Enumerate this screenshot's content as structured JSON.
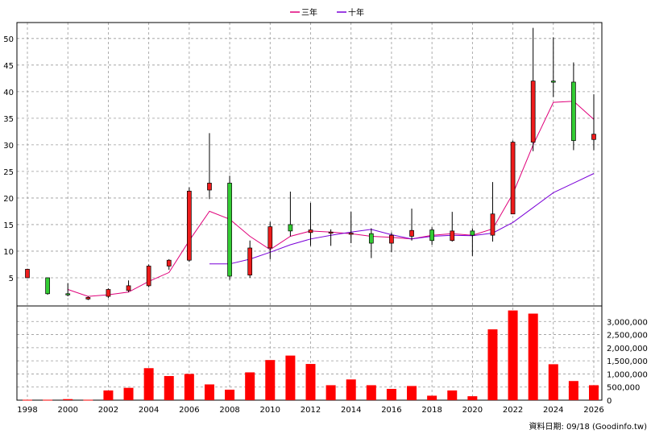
{
  "chart_data": {
    "type": "candlestick",
    "legend": [
      {
        "name": "三年",
        "color": "#e0007a"
      },
      {
        "name": "十年",
        "color": "#7a00d8"
      }
    ],
    "legend_position": "top-center",
    "grid": true,
    "x_tick_labels": [
      "1998",
      "2000",
      "2002",
      "2004",
      "2006",
      "2008",
      "2010",
      "2012",
      "2014",
      "2016",
      "2018",
      "2020",
      "2022",
      "2024",
      "2026"
    ],
    "price_axis": {
      "side": "left",
      "ylim": [
        0,
        53
      ],
      "ticks": [
        5,
        10,
        15,
        20,
        25,
        30,
        35,
        40,
        45,
        50
      ]
    },
    "volume_axis": {
      "side": "right",
      "ylim": [
        0,
        3500000
      ],
      "ticks": [
        0,
        500000,
        1000000,
        1500000,
        2000000,
        2500000,
        3000000
      ],
      "tick_labels": [
        "0",
        "500,000",
        "1,000,000",
        "1,500,000",
        "2,000,000",
        "2,500,000",
        "3,000,000"
      ]
    },
    "candles": [
      {
        "x": 1998,
        "open": 5.0,
        "close": 6.6,
        "high": 6.7,
        "low": 5.0
      },
      {
        "x": 1999,
        "open": 5.0,
        "close": 2.0,
        "high": 5.0,
        "low": 1.8
      },
      {
        "x": 2000,
        "open": 2.0,
        "close": 1.8,
        "high": 4.0,
        "low": 1.5
      },
      {
        "x": 2001,
        "open": 1.0,
        "close": 1.3,
        "high": 1.5,
        "low": 0.8
      },
      {
        "x": 2002,
        "open": 1.5,
        "close": 2.8,
        "high": 3.0,
        "low": 1.2
      },
      {
        "x": 2003,
        "open": 2.6,
        "close": 3.5,
        "high": 4.5,
        "low": 2.3
      },
      {
        "x": 2004,
        "open": 3.5,
        "close": 7.2,
        "high": 7.5,
        "low": 3.2
      },
      {
        "x": 2005,
        "open": 7.2,
        "close": 8.3,
        "high": 8.5,
        "low": 6.5
      },
      {
        "x": 2006,
        "open": 8.3,
        "close": 21.3,
        "high": 22.0,
        "low": 8.0
      },
      {
        "x": 2007,
        "open": 21.5,
        "close": 22.8,
        "high": 32.2,
        "low": 19.8
      },
      {
        "x": 2008,
        "open": 22.8,
        "close": 5.3,
        "high": 24.2,
        "low": 4.6
      },
      {
        "x": 2009,
        "open": 5.5,
        "close": 10.6,
        "high": 12.0,
        "low": 5.0
      },
      {
        "x": 2010,
        "open": 10.6,
        "close": 14.6,
        "high": 15.5,
        "low": 8.5
      },
      {
        "x": 2011,
        "open": 15.0,
        "close": 13.8,
        "high": 21.2,
        "low": 12.8
      },
      {
        "x": 2012,
        "open": 13.5,
        "close": 14.0,
        "high": 19.1,
        "low": 11.0
      },
      {
        "x": 2013,
        "open": 13.5,
        "close": 13.6,
        "high": 14.1,
        "low": 11.0
      },
      {
        "x": 2014,
        "open": 13.3,
        "close": 13.4,
        "high": 17.4,
        "low": 11.5
      },
      {
        "x": 2015,
        "open": 13.3,
        "close": 11.5,
        "high": 14.3,
        "low": 8.7
      },
      {
        "x": 2016,
        "open": 11.5,
        "close": 13.0,
        "high": 13.5,
        "low": 9.8
      },
      {
        "x": 2017,
        "open": 12.8,
        "close": 13.9,
        "high": 18.0,
        "low": 12.0
      },
      {
        "x": 2018,
        "open": 14.0,
        "close": 12.0,
        "high": 14.5,
        "low": 11.2
      },
      {
        "x": 2019,
        "open": 12.0,
        "close": 13.8,
        "high": 17.4,
        "low": 11.8
      },
      {
        "x": 2020,
        "open": 13.8,
        "close": 13.0,
        "high": 14.3,
        "low": 9.1
      },
      {
        "x": 2021,
        "open": 13.0,
        "close": 17.0,
        "high": 23.0,
        "low": 11.8
      },
      {
        "x": 2022,
        "open": 17.0,
        "close": 30.5,
        "high": 30.8,
        "low": 17.0
      },
      {
        "x": 2023,
        "open": 30.5,
        "close": 42.0,
        "high": 52.0,
        "low": 28.8
      },
      {
        "x": 2024,
        "open": 42.0,
        "close": 41.9,
        "high": 50.2,
        "low": 39.0
      },
      {
        "x": 2025,
        "open": 41.8,
        "close": 30.8,
        "high": 45.5,
        "low": 29.0
      },
      {
        "x": 2026,
        "open": 31.0,
        "close": 32.0,
        "high": 39.5,
        "low": 29.0
      }
    ],
    "series": [
      {
        "name": "三年",
        "color": "#e0007a",
        "points": [
          [
            2000,
            2.8
          ],
          [
            2001,
            1.5
          ],
          [
            2002,
            1.8
          ],
          [
            2003,
            2.3
          ],
          [
            2004,
            4.3
          ],
          [
            2005,
            6.0
          ],
          [
            2006,
            12.0
          ],
          [
            2007,
            17.5
          ],
          [
            2008,
            16.0
          ],
          [
            2009,
            12.8
          ],
          [
            2010,
            10.3
          ],
          [
            2011,
            12.8
          ],
          [
            2012,
            13.8
          ],
          [
            2013,
            13.6
          ],
          [
            2014,
            13.3
          ],
          [
            2015,
            12.8
          ],
          [
            2016,
            12.6
          ],
          [
            2017,
            12.3
          ],
          [
            2018,
            13.0
          ],
          [
            2019,
            13.3
          ],
          [
            2020,
            13.0
          ],
          [
            2021,
            14.2
          ],
          [
            2022,
            20.8
          ],
          [
            2023,
            30.0
          ],
          [
            2024,
            38.0
          ],
          [
            2025,
            38.2
          ],
          [
            2026,
            34.8
          ]
        ]
      },
      {
        "name": "十年",
        "color": "#7a00d8",
        "points": [
          [
            2007,
            7.6
          ],
          [
            2008,
            7.6
          ],
          [
            2009,
            8.5
          ],
          [
            2010,
            9.8
          ],
          [
            2011,
            11.2
          ],
          [
            2012,
            12.3
          ],
          [
            2013,
            13.0
          ],
          [
            2014,
            13.6
          ],
          [
            2015,
            14.1
          ],
          [
            2016,
            13.1
          ],
          [
            2017,
            12.3
          ],
          [
            2018,
            12.8
          ],
          [
            2019,
            13.0
          ],
          [
            2020,
            12.9
          ],
          [
            2021,
            13.4
          ],
          [
            2022,
            15.4
          ],
          [
            2023,
            18.2
          ],
          [
            2024,
            21.0
          ],
          [
            2025,
            22.8
          ],
          [
            2026,
            24.6
          ]
        ]
      }
    ],
    "volume": [
      {
        "x": 1998,
        "value": 15000
      },
      {
        "x": 1999,
        "value": 15000
      },
      {
        "x": 2000,
        "value": 40000
      },
      {
        "x": 2001,
        "value": 15000
      },
      {
        "x": 2002,
        "value": 370000
      },
      {
        "x": 2003,
        "value": 470000
      },
      {
        "x": 2004,
        "value": 1220000
      },
      {
        "x": 2005,
        "value": 920000
      },
      {
        "x": 2006,
        "value": 1000000
      },
      {
        "x": 2007,
        "value": 600000
      },
      {
        "x": 2008,
        "value": 400000
      },
      {
        "x": 2009,
        "value": 1060000
      },
      {
        "x": 2010,
        "value": 1530000
      },
      {
        "x": 2011,
        "value": 1700000
      },
      {
        "x": 2012,
        "value": 1380000
      },
      {
        "x": 2013,
        "value": 570000
      },
      {
        "x": 2014,
        "value": 790000
      },
      {
        "x": 2015,
        "value": 570000
      },
      {
        "x": 2016,
        "value": 430000
      },
      {
        "x": 2017,
        "value": 540000
      },
      {
        "x": 2018,
        "value": 170000
      },
      {
        "x": 2019,
        "value": 370000
      },
      {
        "x": 2020,
        "value": 150000
      },
      {
        "x": 2021,
        "value": 2700000
      },
      {
        "x": 2022,
        "value": 3420000
      },
      {
        "x": 2023,
        "value": 3300000
      },
      {
        "x": 2024,
        "value": 1370000
      },
      {
        "x": 2025,
        "value": 730000
      },
      {
        "x": 2026,
        "value": 570000
      }
    ],
    "footer_text": "資料日期: 09/18  (Goodinfo.tw)",
    "colors": {
      "up": "#ee1c1c",
      "down": "#33cc33",
      "volume": "#ff0000",
      "grid": "#999999"
    }
  }
}
